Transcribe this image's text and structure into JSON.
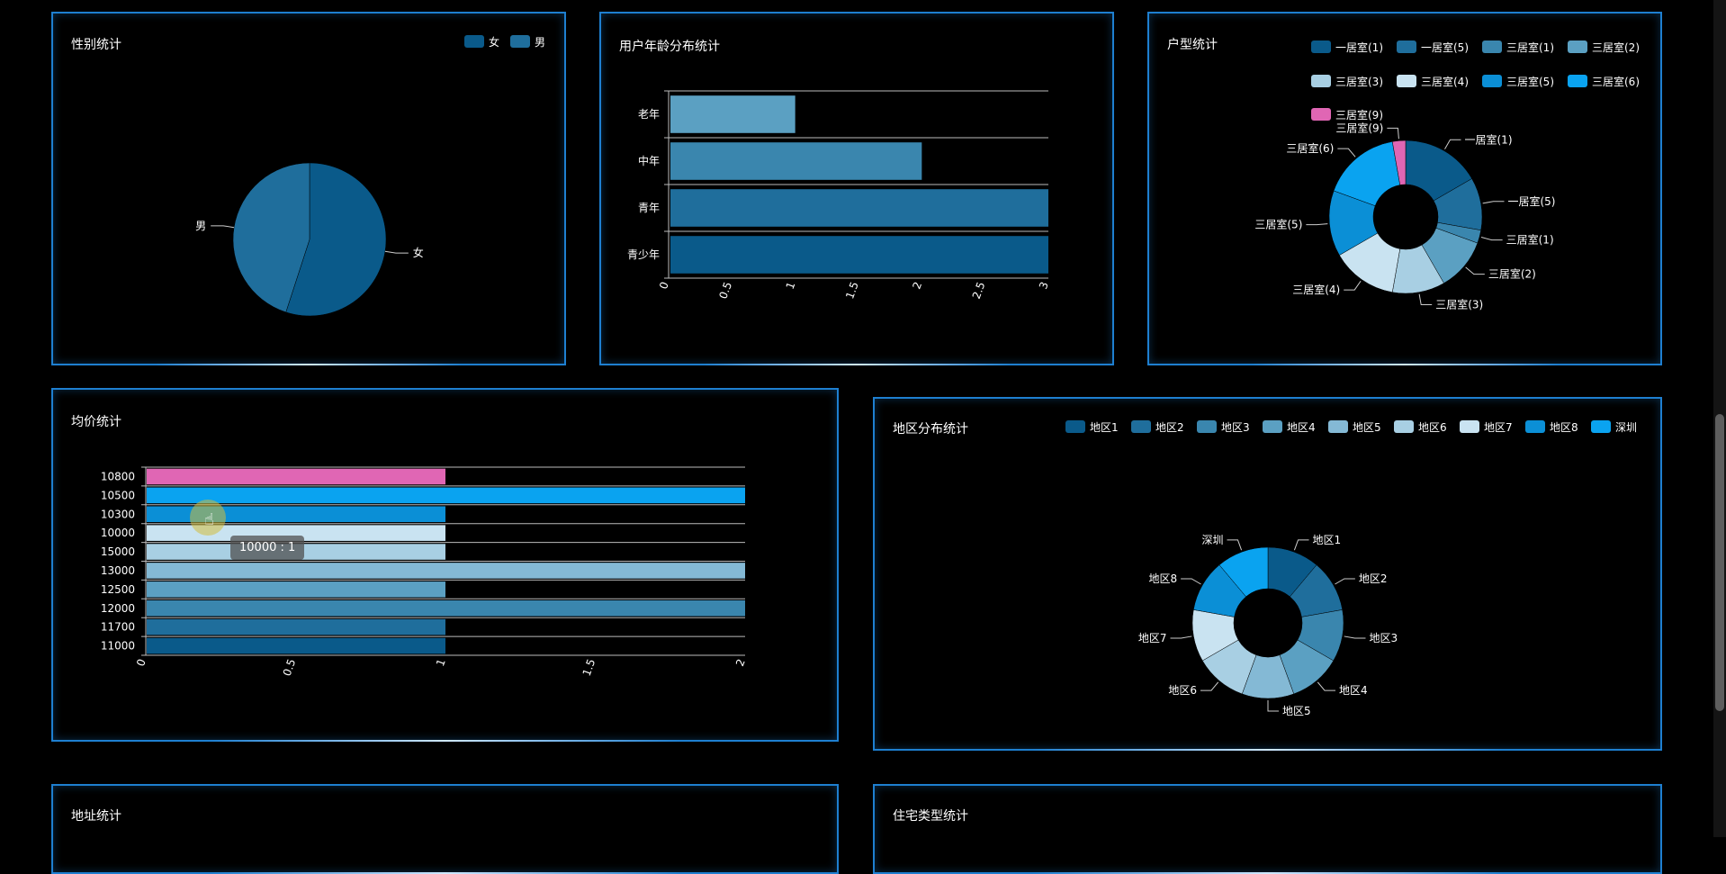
{
  "colors": {
    "palette": [
      "#0a5a8a",
      "#1f6e9c",
      "#3a86ae",
      "#5ba0c2",
      "#84b9d5",
      "#a8cfe3",
      "#c9e3f1",
      "#0b8fd6",
      "#0aa3f0"
    ],
    "pink": "#e066b4",
    "border": "#1e7fd0"
  },
  "gender_panel": {
    "title": "性别统计",
    "chart_data": {
      "type": "pie",
      "labels": [
        "女",
        "男"
      ],
      "values": [
        55,
        45
      ],
      "legend": [
        "女",
        "男"
      ],
      "legend_position": "top-right"
    }
  },
  "age_panel": {
    "title": "用户年龄分布统计",
    "chart_data": {
      "type": "bar",
      "orientation": "horizontal",
      "categories": [
        "青少年",
        "青年",
        "中年",
        "老年"
      ],
      "values": [
        3,
        3,
        2,
        1
      ],
      "xlim": [
        0,
        3
      ],
      "xticks": [
        "0",
        "0.5",
        "1",
        "1.5",
        "2",
        "2.5",
        "3"
      ],
      "grid": true
    }
  },
  "room_panel": {
    "title": "户型统计",
    "chart_data": {
      "type": "pie",
      "donut": true,
      "labels": [
        "一居室(1)",
        "一居室(5)",
        "三居室(1)",
        "三居室(2)",
        "三居室(3)",
        "三居室(4)",
        "三居室(5)",
        "三居室(6)",
        "三居室(9)"
      ],
      "values": [
        3,
        2,
        0.5,
        2,
        2,
        2.5,
        2.5,
        3,
        0.5
      ],
      "ring_order": [
        "",
        "一居室(1)",
        "一居室(5)",
        "三居室(1)",
        "三居室(2)",
        "三居室(3)",
        "三居室(4)",
        "三居室(5)",
        "三居室(6)",
        "三居室(9)"
      ],
      "legend_position": "top-right"
    }
  },
  "price_panel": {
    "title": "均价统计",
    "chart_data": {
      "type": "bar",
      "orientation": "horizontal",
      "categories": [
        "11000",
        "11700",
        "12000",
        "12500",
        "13000",
        "15000",
        "10000",
        "10300",
        "10500",
        "10800"
      ],
      "values": [
        1,
        1,
        2,
        1,
        2,
        1,
        1,
        1,
        2,
        1
      ],
      "xlim": [
        0,
        2
      ],
      "xticks": [
        "0",
        "0.5",
        "1",
        "1.5",
        "2"
      ],
      "grid": true
    },
    "tooltip": "10000 : 1"
  },
  "region_panel": {
    "title": "地区分布统计",
    "chart_data": {
      "type": "pie",
      "donut": true,
      "labels": [
        "地区1",
        "地区2",
        "地区3",
        "地区4",
        "地区5",
        "地区6",
        "地区7",
        "地区8",
        "深圳"
      ],
      "values": [
        1,
        1,
        1,
        1,
        1,
        1,
        1,
        1,
        1
      ],
      "legend_position": "top-right"
    }
  },
  "address_panel": {
    "title": "地址统计"
  },
  "housing_panel": {
    "title": "住宅类型统计"
  }
}
